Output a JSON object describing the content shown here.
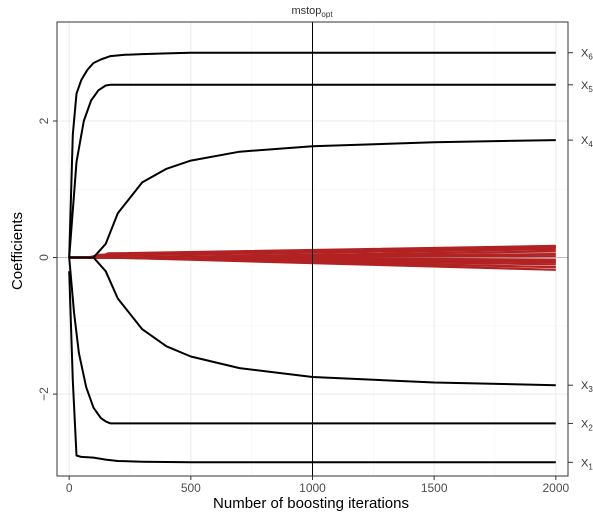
{
  "chart_data": {
    "type": "line",
    "xlabel": "Number of boosting iterations",
    "ylabel": "Coefficients",
    "xlim": [
      -50,
      2050
    ],
    "ylim": [
      -3.2,
      3.45
    ],
    "x_ticks": [
      0,
      500,
      1000,
      1500,
      2000
    ],
    "y_ticks": [
      -2,
      0,
      2
    ],
    "x_tick_labels": [
      "0",
      "500",
      "1000",
      "1500",
      "2000"
    ],
    "y_tick_labels": [
      "−2",
      "0",
      "2"
    ],
    "grid": true,
    "vline": {
      "x": 1000,
      "label_main": "mstop",
      "label_sub": "opt"
    },
    "hline_zero": true,
    "colors": {
      "informative": "#000000",
      "noise": "#b22222",
      "grid": "#ebebeb",
      "zero_line": "#bfbfbf"
    },
    "series": [
      {
        "name": "X6",
        "label_main": "X",
        "label_sub": "6",
        "x": [
          0,
          15,
          30,
          50,
          75,
          100,
          130,
          170,
          230,
          300,
          400,
          500,
          700,
          1000,
          1500,
          2000
        ],
        "y": [
          0,
          1.8,
          2.4,
          2.6,
          2.75,
          2.85,
          2.9,
          2.95,
          2.97,
          2.98,
          2.99,
          3.0,
          3.0,
          3.0,
          3.0,
          3.0
        ]
      },
      {
        "name": "X5",
        "label_main": "X",
        "label_sub": "5",
        "x": [
          0,
          30,
          60,
          90,
          120,
          150,
          170,
          300,
          500,
          1000,
          1500,
          2000
        ],
        "y": [
          0,
          1.4,
          2.0,
          2.3,
          2.45,
          2.52,
          2.53,
          2.53,
          2.53,
          2.53,
          2.53,
          2.53
        ]
      },
      {
        "name": "X4",
        "label_main": "X",
        "label_sub": "4",
        "x": [
          0,
          100,
          150,
          200,
          300,
          400,
          500,
          700,
          1000,
          1500,
          2000
        ],
        "y": [
          0,
          0,
          0.2,
          0.65,
          1.1,
          1.3,
          1.42,
          1.55,
          1.63,
          1.69,
          1.72
        ]
      },
      {
        "name": "X3",
        "label_main": "X",
        "label_sub": "3",
        "x": [
          0,
          100,
          150,
          200,
          300,
          400,
          500,
          700,
          1000,
          1500,
          2000
        ],
        "y": [
          0,
          0,
          -0.2,
          -0.6,
          -1.05,
          -1.3,
          -1.45,
          -1.62,
          -1.75,
          -1.83,
          -1.87
        ]
      },
      {
        "name": "X2",
        "label_main": "X",
        "label_sub": "2",
        "x": [
          0,
          20,
          40,
          70,
          100,
          130,
          150,
          170,
          300,
          500,
          1000,
          2000
        ],
        "y": [
          0,
          -0.8,
          -1.4,
          -1.9,
          -2.2,
          -2.35,
          -2.4,
          -2.43,
          -2.43,
          -2.43,
          -2.43,
          -2.43
        ]
      },
      {
        "name": "X1",
        "label_main": "X",
        "label_sub": "1",
        "x": [
          0,
          15,
          30,
          50,
          100,
          150,
          200,
          300,
          500,
          1000,
          2000
        ],
        "y": [
          -0.2,
          -1.8,
          -2.9,
          -2.92,
          -2.93,
          -2.96,
          -2.98,
          -2.99,
          -3.0,
          -3.0,
          -3.0
        ]
      }
    ],
    "noise_series": [
      {
        "x": [
          0,
          120,
          160,
          2000
        ],
        "y": [
          0,
          0,
          0.06,
          0.17
        ]
      },
      {
        "x": [
          0,
          120,
          160,
          2000
        ],
        "y": [
          0,
          0,
          0.03,
          0.12
        ]
      },
      {
        "x": [
          0,
          200,
          2000
        ],
        "y": [
          0,
          0,
          0.09
        ]
      },
      {
        "x": [
          0,
          250,
          2000
        ],
        "y": [
          0,
          0,
          0.05
        ]
      },
      {
        "x": [
          0,
          100,
          140,
          2000
        ],
        "y": [
          0,
          0,
          0.04,
          0.14
        ]
      },
      {
        "x": [
          0,
          150,
          2000
        ],
        "y": [
          0,
          0,
          0.02
        ]
      },
      {
        "x": [
          0,
          200,
          2000
        ],
        "y": [
          0,
          0,
          -0.03
        ]
      },
      {
        "x": [
          0,
          180,
          2000
        ],
        "y": [
          0,
          0,
          -0.07
        ]
      },
      {
        "x": [
          0,
          150,
          2000
        ],
        "y": [
          0,
          0,
          -0.1
        ]
      },
      {
        "x": [
          0,
          130,
          2000
        ],
        "y": [
          0,
          0,
          -0.14
        ]
      },
      {
        "x": [
          0,
          170,
          2000
        ],
        "y": [
          0,
          0,
          -0.18
        ]
      },
      {
        "x": [
          0,
          300,
          2000
        ],
        "y": [
          0,
          0,
          -0.05
        ]
      },
      {
        "x": [
          0,
          80,
          120,
          2000
        ],
        "y": [
          0,
          0,
          0.04,
          0.16
        ]
      }
    ]
  }
}
